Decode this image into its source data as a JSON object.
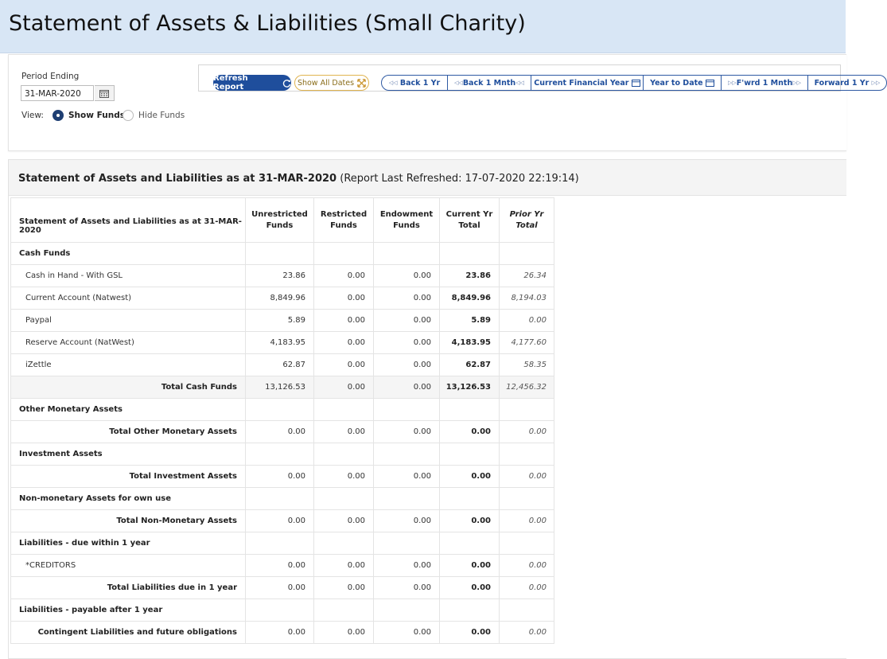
{
  "header": {
    "title": "Statement of Assets & Liabilities (Small Charity)"
  },
  "params": {
    "period_label": "Period Ending",
    "period_value": "31-MAR-2020",
    "view_label": "View:",
    "show_funds": "Show Funds",
    "hide_funds": "Hide Funds",
    "selected_view": "Show Funds"
  },
  "toolbar": {
    "refresh": "Refresh Report",
    "show_all": "Show All Dates",
    "back_year": "Back 1 Yr",
    "back_month": "Back 1 Mnth",
    "current_fy": "Current Financial Year",
    "year_to_date": "Year to Date",
    "fwd_month": "F'wrd 1 Mnth",
    "fwd_year": "Forward 1 Yr"
  },
  "report": {
    "heading_bold": "Statement of Assets and Liabilities as at 31-MAR-2020",
    "heading_rest": "(Report Last Refreshed: 17-07-2020 22:19:14)",
    "columns": [
      "Statement of Assets and Liabilities as at 31-MAR-2020",
      "Unrestricted Funds",
      "Restricted Funds",
      "Endowment Funds",
      "Current Yr Total",
      "Prior Yr Total"
    ],
    "rows": [
      {
        "kind": "section",
        "label": "Cash Funds"
      },
      {
        "kind": "item",
        "label": "Cash in Hand - With GSL",
        "values": [
          "23.86",
          "0.00",
          "0.00",
          "23.86",
          "26.34"
        ]
      },
      {
        "kind": "item",
        "label": "Current Account (Natwest)",
        "values": [
          "8,849.96",
          "0.00",
          "0.00",
          "8,849.96",
          "8,194.03"
        ]
      },
      {
        "kind": "item",
        "label": "Paypal",
        "values": [
          "5.89",
          "0.00",
          "0.00",
          "5.89",
          "0.00"
        ]
      },
      {
        "kind": "item",
        "label": "Reserve Account (NatWest)",
        "values": [
          "4,183.95",
          "0.00",
          "0.00",
          "4,183.95",
          "4,177.60"
        ]
      },
      {
        "kind": "item",
        "label": "iZettle",
        "values": [
          "62.87",
          "0.00",
          "0.00",
          "62.87",
          "58.35"
        ]
      },
      {
        "kind": "total",
        "shaded": true,
        "label": "Total Cash Funds",
        "values": [
          "13,126.53",
          "0.00",
          "0.00",
          "13,126.53",
          "12,456.32"
        ]
      },
      {
        "kind": "section",
        "label": "Other Monetary Assets"
      },
      {
        "kind": "total",
        "label": "Total Other Monetary Assets",
        "values": [
          "0.00",
          "0.00",
          "0.00",
          "0.00",
          "0.00"
        ]
      },
      {
        "kind": "section",
        "label": "Investment Assets"
      },
      {
        "kind": "total",
        "label": "Total Investment Assets",
        "values": [
          "0.00",
          "0.00",
          "0.00",
          "0.00",
          "0.00"
        ]
      },
      {
        "kind": "section",
        "label": "Non-monetary Assets for own use"
      },
      {
        "kind": "total",
        "label": "Total Non-Monetary Assets",
        "values": [
          "0.00",
          "0.00",
          "0.00",
          "0.00",
          "0.00"
        ]
      },
      {
        "kind": "section",
        "label": "Liabilities - due within 1 year"
      },
      {
        "kind": "item",
        "label": "*CREDITORS",
        "values": [
          "0.00",
          "0.00",
          "0.00",
          "0.00",
          "0.00"
        ]
      },
      {
        "kind": "total",
        "label": "Total Liabilities due in 1 year",
        "values": [
          "0.00",
          "0.00",
          "0.00",
          "0.00",
          "0.00"
        ]
      },
      {
        "kind": "section",
        "label": "Liabilities - payable after 1 year"
      },
      {
        "kind": "total",
        "label": "Contingent Liabilities and future obligations",
        "values": [
          "0.00",
          "0.00",
          "0.00",
          "0.00",
          "0.00"
        ]
      }
    ]
  }
}
